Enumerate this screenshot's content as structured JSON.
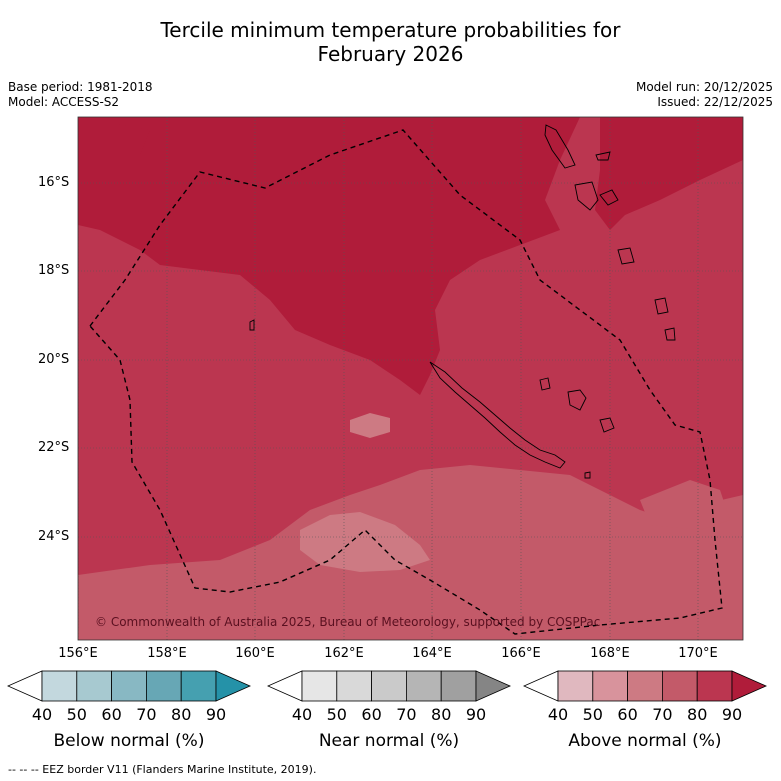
{
  "title_line1": "Tercile minimum temperature probabilities for",
  "title_line2": "February 2026",
  "base_period": "Base period: 1981-2018",
  "model": "Model: ACCESS-S2",
  "model_run": "Model run: 20/12/2025",
  "issued": "Issued: 22/12/2025",
  "latitude_labels": [
    "16°S",
    "18°S",
    "20°S",
    "22°S",
    "24°S"
  ],
  "longitude_labels": [
    "156°E",
    "158°E",
    "160°E",
    "162°E",
    "164°E",
    "166°E",
    "168°E",
    "170°E"
  ],
  "copyright": "© Commonwealth of Australia 2025, Bureau of Meteorology, supported by COSPPac",
  "colorbars": [
    {
      "label": "Below normal (%)",
      "ticks": [
        "40",
        "50",
        "60",
        "70",
        "80",
        "90"
      ],
      "colors": [
        "#ffffff",
        "#c3d8de",
        "#a7c9d0",
        "#88b8c3",
        "#67a7b5",
        "#45a0b0",
        "#2592a8"
      ]
    },
    {
      "label": "Near normal (%)",
      "ticks": [
        "40",
        "50",
        "60",
        "70",
        "80",
        "90"
      ],
      "colors": [
        "#ffffff",
        "#e6e6e6",
        "#d9d9d9",
        "#cacaca",
        "#b5b5b5",
        "#a0a0a0",
        "#858585"
      ]
    },
    {
      "label": "Above normal (%)",
      "ticks": [
        "40",
        "50",
        "60",
        "70",
        "80",
        "90"
      ],
      "colors": [
        "#ffffff",
        "#e0b8bf",
        "#d8939c",
        "#cd7a83",
        "#c35a69",
        "#bb3650",
        "#b01c3a"
      ]
    }
  ],
  "legend_note": "--  --  -- EEZ border V11 (Flanders Marine Institute, 2019).",
  "map_colors": {
    "category_90": "#b01c3a",
    "category_80": "#bb3650",
    "category_70": "#c35a69",
    "category_60": "#cd7a83"
  }
}
